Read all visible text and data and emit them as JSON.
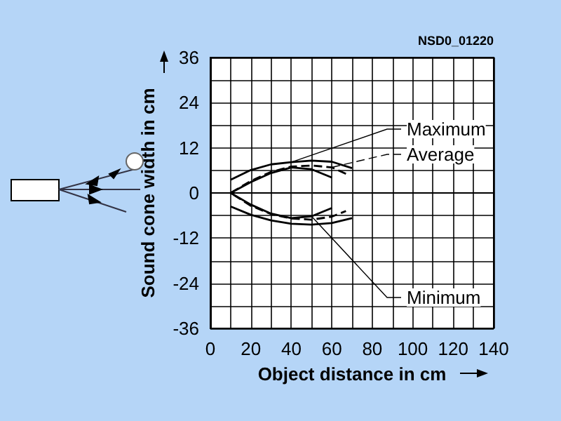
{
  "chart_data": {
    "type": "line",
    "xlabel": "Object distance in cm",
    "ylabel": "Sound cone width in cm",
    "annotations": [
      "NSD0_01220"
    ],
    "x": [
      10,
      20,
      30,
      40,
      50,
      60,
      70,
      null,
      10,
      20,
      30,
      40,
      50,
      60,
      70
    ],
    "xlim": [
      0,
      140
    ],
    "ylim": [
      -36,
      36
    ],
    "xticks": [
      0,
      {
        "value": 10,
        "label": null
      },
      20,
      {
        "value": 30,
        "label": null
      },
      40,
      {
        "value": 50,
        "label": null
      },
      60,
      {
        "value": 70,
        "label": null
      },
      80,
      {
        "value": 90,
        "label": null
      },
      100,
      {
        "value": 110,
        "label": null
      },
      120,
      {
        "value": 130,
        "label": null
      },
      140
    ],
    "yticks": [
      -36,
      {
        "value": -30,
        "label": null
      },
      -24,
      {
        "value": -18,
        "label": null
      },
      -12,
      {
        "value": -6,
        "label": null
      },
      0,
      {
        "value": 6,
        "label": null
      },
      12,
      {
        "value": 18,
        "label": null
      },
      24,
      {
        "value": 30,
        "label": null
      },
      36
    ],
    "grid": true,
    "legend": "right",
    "marker": "none",
    "series": [
      {
        "name": "Maximum",
        "color": "#000000",
        "line_style": "solid",
        "values": [
          3.5,
          6.1,
          7.6,
          8.2,
          8.6,
          8.3,
          6.6,
          null,
          -3.6,
          -5.8,
          -7.3,
          -8.2,
          -8.4,
          -8.0,
          -6.7
        ]
      },
      {
        "name": "Average",
        "color": "#000000",
        "line_style": "dashed",
        "x": [
          67,
          60,
          50,
          40,
          30,
          20,
          10,
          20,
          30,
          40,
          50,
          60,
          67
        ],
        "values": [
          5.1,
          6.8,
          7.3,
          7.0,
          5.6,
          3.2,
          0,
          -3.4,
          -5.6,
          -6.8,
          -7.1,
          -6.3,
          -4.8
        ]
      },
      {
        "name": "Minimum",
        "color": "#000000",
        "line_style": "solid",
        "x": [
          60,
          50,
          40,
          30,
          20,
          10,
          20,
          30,
          40,
          50,
          60
        ],
        "values": [
          4.1,
          6.3,
          6.8,
          5.3,
          2.9,
          0,
          -3.1,
          -5.5,
          -6.7,
          -6.2,
          -4.0
        ]
      }
    ]
  }
}
